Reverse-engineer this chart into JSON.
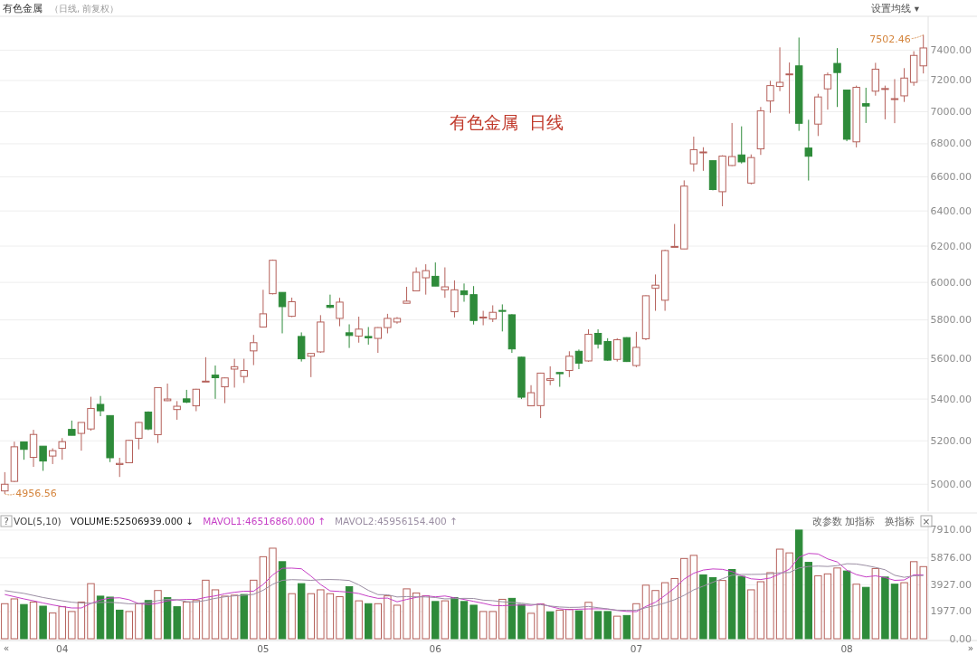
{
  "chart_data": [
    {
      "type": "candlestick",
      "title": "有色金属",
      "subtitle": "（日线, 前复权）",
      "log": true,
      "grid": "y",
      "tick_labels": "y",
      "ylim": [
        4880,
        7630
      ],
      "yticks": [
        {
          "value": 5000,
          "label": "5000.00"
        },
        {
          "value": 5200,
          "label": "5200.00"
        },
        {
          "value": 5400,
          "label": "5400.00"
        },
        {
          "value": 5600,
          "label": "5600.00"
        },
        {
          "value": 5800,
          "label": "5800.00"
        },
        {
          "value": 6000,
          "label": "6000.00"
        },
        {
          "value": 6200,
          "label": "6200.00"
        },
        {
          "value": 6400,
          "label": "6400.00"
        },
        {
          "value": 6600,
          "label": "6600.00"
        },
        {
          "value": 6800,
          "label": "6800.00"
        },
        {
          "value": 7000,
          "label": "7000.00"
        },
        {
          "value": 7200,
          "label": "7200.00"
        },
        {
          "value": 7400,
          "label": "7400.00"
        }
      ],
      "categories": [
        null,
        null,
        null,
        null,
        null,
        null,
        "04",
        null,
        null,
        null,
        null,
        null,
        null,
        null,
        null,
        null,
        null,
        null,
        null,
        null,
        null,
        null,
        null,
        null,
        null,
        null,
        null,
        "05",
        null,
        null,
        null,
        null,
        null,
        null,
        null,
        null,
        null,
        null,
        null,
        null,
        null,
        null,
        null,
        null,
        null,
        "06",
        null,
        null,
        null,
        null,
        null,
        null,
        null,
        null,
        null,
        null,
        null,
        null,
        null,
        null,
        null,
        null,
        null,
        null,
        null,
        null,
        "07",
        null,
        null,
        null,
        null,
        null,
        null,
        null,
        null,
        null,
        null,
        null,
        null,
        null,
        null,
        null,
        null,
        null,
        null,
        null,
        null,
        null,
        "08",
        null,
        null,
        null,
        null,
        null,
        null,
        null,
        null
      ],
      "ohlc": [
        [
          4970,
          5055,
          4956.56,
          5000
        ],
        [
          5013,
          5196,
          5010,
          5172
        ],
        [
          5195,
          5195,
          5112,
          5160
        ],
        [
          5123,
          5252,
          5079,
          5230
        ],
        [
          5175,
          5175,
          5061,
          5106
        ],
        [
          5129,
          5165,
          5092,
          5154
        ],
        [
          5165,
          5213,
          5112,
          5196
        ],
        [
          5254,
          5296,
          5226,
          5226
        ],
        [
          5235,
          5287,
          5154,
          5287
        ],
        [
          5256,
          5411,
          5248,
          5354
        ],
        [
          5374,
          5415,
          5317,
          5343
        ],
        [
          5320,
          5320,
          5101,
          5121
        ],
        [
          5090,
          5121,
          5033,
          5095
        ],
        [
          5098,
          5205,
          5096,
          5202
        ],
        [
          5212,
          5290,
          5160,
          5287
        ],
        [
          5337,
          5340,
          5250,
          5256
        ],
        [
          5229,
          5458,
          5190,
          5456
        ],
        [
          5392,
          5476,
          5390,
          5400
        ],
        [
          5349,
          5390,
          5300,
          5365
        ],
        [
          5401,
          5445,
          5380,
          5385
        ],
        [
          5367,
          5450,
          5341,
          5448
        ],
        [
          5485,
          5608,
          5485,
          5488
        ],
        [
          5518,
          5566,
          5401,
          5505
        ],
        [
          5460,
          5506,
          5380,
          5504
        ],
        [
          5548,
          5600,
          5456,
          5560
        ],
        [
          5511,
          5600,
          5479,
          5541
        ],
        [
          5640,
          5722,
          5568,
          5682
        ],
        [
          5763,
          5960,
          5760,
          5832
        ],
        [
          5939,
          6125,
          5935,
          6121
        ],
        [
          5946,
          5946,
          5730,
          5870
        ],
        [
          5819,
          5918,
          5815,
          5896
        ],
        [
          5714,
          5735,
          5586,
          5600
        ],
        [
          5613,
          5630,
          5508,
          5627
        ],
        [
          5635,
          5825,
          5630,
          5789
        ],
        [
          5877,
          5934,
          5862,
          5866
        ],
        [
          5808,
          5917,
          5767,
          5894
        ],
        [
          5733,
          5777,
          5655,
          5719
        ],
        [
          5716,
          5817,
          5682,
          5752
        ],
        [
          5714,
          5763,
          5672,
          5707
        ],
        [
          5704,
          5762,
          5630,
          5760
        ],
        [
          5760,
          5832,
          5730,
          5808
        ],
        [
          5789,
          5815,
          5780,
          5808
        ],
        [
          5888,
          5976,
          5888,
          5899
        ],
        [
          5954,
          6082,
          5954,
          6055
        ],
        [
          6025,
          6099,
          5934,
          6064
        ],
        [
          6033,
          6109,
          5980,
          5980
        ],
        [
          5960,
          6082,
          5917,
          5976
        ],
        [
          5843,
          6011,
          5813,
          5960
        ],
        [
          5954,
          5994,
          5896,
          5934
        ],
        [
          5934,
          5980,
          5776,
          5797
        ],
        [
          5810,
          5848,
          5772,
          5815
        ],
        [
          5805,
          5877,
          5789,
          5840
        ],
        [
          5850,
          5882,
          5740,
          5845
        ],
        [
          5827,
          5830,
          5630,
          5650
        ],
        [
          5608,
          5610,
          5400,
          5409
        ],
        [
          5367,
          5468,
          5365,
          5431
        ],
        [
          5368,
          5530,
          5308,
          5528
        ],
        [
          5492,
          5562,
          5468,
          5500
        ],
        [
          5531,
          5531,
          5460,
          5525
        ],
        [
          5541,
          5638,
          5508,
          5613
        ],
        [
          5638,
          5647,
          5548,
          5578
        ],
        [
          5589,
          5751,
          5585,
          5725
        ],
        [
          5730,
          5751,
          5652,
          5675
        ],
        [
          5688,
          5705,
          5590,
          5593
        ],
        [
          5597,
          5705,
          5586,
          5697
        ],
        [
          5708,
          5710,
          5584,
          5586
        ],
        [
          5566,
          5738,
          5558,
          5658
        ],
        [
          5702,
          5930,
          5695,
          5928
        ],
        [
          5968,
          6043,
          5848,
          5985
        ],
        [
          5904,
          6180,
          5848,
          6175
        ],
        [
          6195,
          6325,
          6195,
          6198
        ],
        [
          6184,
          6579,
          6184,
          6545
        ],
        [
          6678,
          6844,
          6632,
          6764
        ],
        [
          6745,
          6779,
          6636,
          6750
        ],
        [
          6697,
          6697,
          6520,
          6525
        ],
        [
          6512,
          6730,
          6427,
          6725
        ],
        [
          6668,
          6929,
          6665,
          6722
        ],
        [
          6732,
          6908,
          6680,
          6690
        ],
        [
          6563,
          6735,
          6555,
          6716
        ],
        [
          6769,
          7030,
          6732,
          7005
        ],
        [
          7068,
          7198,
          6993,
          7167
        ],
        [
          7162,
          7419,
          7131,
          7188
        ],
        [
          7240,
          7318,
          6988,
          7243
        ],
        [
          7296,
          7485,
          6880,
          6927
        ],
        [
          6774,
          6949,
          6578,
          6724
        ],
        [
          6922,
          7114,
          6848,
          7094
        ],
        [
          7146,
          7252,
          7013,
          7237
        ],
        [
          7312,
          7414,
          7030,
          7252
        ],
        [
          7138,
          7140,
          6816,
          6828
        ],
        [
          6812,
          7167,
          6778,
          7156
        ],
        [
          7051,
          7153,
          6929,
          7036
        ],
        [
          7131,
          7316,
          7102,
          7274
        ],
        [
          7146,
          7167,
          6952,
          7148
        ],
        [
          7080,
          7209,
          6928,
          7083
        ],
        [
          7101,
          7281,
          7062,
          7216
        ],
        [
          7188,
          7393,
          7166,
          7365
        ],
        [
          7296,
          7502.46,
          7246,
          7415
        ]
      ],
      "colors": [
        "#b5605a",
        "#b5605a",
        "#2e8b3a",
        "#b5605a",
        "#2e8b3a",
        "#b5605a",
        "#b5605a",
        "#2e8b3a",
        "#b5605a",
        "#b5605a",
        "#2e8b3a",
        "#2e8b3a",
        "#b5605a",
        "#b5605a",
        "#b5605a",
        "#2e8b3a",
        "#b5605a",
        "#b5605a",
        "#b5605a",
        "#2e8b3a",
        "#b5605a",
        "#b5605a",
        "#2e8b3a",
        "#b5605a",
        "#b5605a",
        "#b5605a",
        "#b5605a",
        "#b5605a",
        "#b5605a",
        "#2e8b3a",
        "#b5605a",
        "#2e8b3a",
        "#b5605a",
        "#b5605a",
        "#2e8b3a",
        "#b5605a",
        "#2e8b3a",
        "#b5605a",
        "#2e8b3a",
        "#b5605a",
        "#b5605a",
        "#b5605a",
        "#b5605a",
        "#b5605a",
        "#b5605a",
        "#2e8b3a",
        "#b5605a",
        "#b5605a",
        "#2e8b3a",
        "#2e8b3a",
        "#b5605a",
        "#b5605a",
        "#2e8b3a",
        "#2e8b3a",
        "#2e8b3a",
        "#b5605a",
        "#b5605a",
        "#b5605a",
        "#2e8b3a",
        "#b5605a",
        "#2e8b3a",
        "#b5605a",
        "#2e8b3a",
        "#2e8b3a",
        "#b5605a",
        "#2e8b3a",
        "#b5605a",
        "#b5605a",
        "#b5605a",
        "#b5605a",
        "#b5605a",
        "#b5605a",
        "#b5605a",
        "#b5605a",
        "#2e8b3a",
        "#b5605a",
        "#b5605a",
        "#2e8b3a",
        "#b5605a",
        "#b5605a",
        "#b5605a",
        "#b5605a",
        "#b5605a",
        "#2e8b3a",
        "#2e8b3a",
        "#b5605a",
        "#b5605a",
        "#2e8b3a",
        "#2e8b3a",
        "#b5605a",
        "#2e8b3a",
        "#b5605a",
        "#b5605a",
        "#b5605a",
        "#b5605a",
        "#b5605a",
        "#b5605a"
      ],
      "annotations": [
        "7502.46",
        "4956.56",
        "有色金属  日线",
        "设置均线 ▾"
      ]
    },
    {
      "type": "bar",
      "title": "VOL(5,10)",
      "grid": "y",
      "ylim": [
        0,
        8300
      ],
      "yticks": [
        {
          "value": 0,
          "label": "0.00"
        },
        {
          "value": 1977,
          "label": "1977.00"
        },
        {
          "value": 3927,
          "label": "3927.00"
        },
        {
          "value": 5876,
          "label": "5876.00"
        },
        {
          "value": 7910,
          "label": "7910.00"
        }
      ],
      "categories": [
        null,
        null,
        null,
        null,
        null,
        null,
        "04",
        null,
        null,
        null,
        null,
        null,
        null,
        null,
        null,
        null,
        null,
        null,
        null,
        null,
        null,
        null,
        null,
        null,
        null,
        null,
        null,
        "05",
        null,
        null,
        null,
        null,
        null,
        null,
        null,
        null,
        null,
        null,
        null,
        null,
        null,
        null,
        null,
        null,
        null,
        "06",
        null,
        null,
        null,
        null,
        null,
        null,
        null,
        null,
        null,
        null,
        null,
        null,
        null,
        null,
        null,
        null,
        null,
        null,
        null,
        null,
        "07",
        null,
        null,
        null,
        null,
        null,
        null,
        null,
        null,
        null,
        null,
        null,
        null,
        null,
        null,
        null,
        null,
        null,
        null,
        null,
        null,
        null,
        "08",
        null,
        null,
        null,
        null,
        null,
        null,
        null,
        null
      ],
      "series": [
        {
          "type": "bar",
          "values": [
            2550,
            2900,
            2490,
            2670,
            2370,
            1870,
            2330,
            1980,
            2670,
            4010,
            3100,
            3030,
            2080,
            1980,
            2550,
            2780,
            3510,
            2990,
            2330,
            2670,
            2780,
            4260,
            3560,
            3100,
            3170,
            3220,
            4260,
            5970,
            6590,
            5610,
            3280,
            4010,
            3280,
            3560,
            3280,
            3060,
            3790,
            2760,
            2550,
            2550,
            3120,
            2440,
            3630,
            3330,
            3120,
            2710,
            2760,
            2990,
            2710,
            2440,
            1980,
            1980,
            2870,
            2940,
            2490,
            1850,
            2530,
            1960,
            2080,
            2140,
            2030,
            2650,
            1980,
            1980,
            1640,
            1690,
            2550,
            3900,
            3510,
            4080,
            4380,
            5840,
            6070,
            4650,
            4450,
            4240,
            5040,
            4540,
            3560,
            4150,
            4810,
            6520,
            6250,
            7910,
            5560,
            4580,
            4720,
            5150,
            4930,
            3970,
            3740,
            5110,
            4490,
            3970,
            4080,
            5610,
            5250
          ],
          "colors": [
            "#b5605a",
            "#b5605a",
            "#2e8b3a",
            "#b5605a",
            "#2e8b3a",
            "#b5605a",
            "#b5605a",
            "#b5605a",
            "#b5605a",
            "#b5605a",
            "#2e8b3a",
            "#2e8b3a",
            "#2e8b3a",
            "#b5605a",
            "#b5605a",
            "#2e8b3a",
            "#b5605a",
            "#2e8b3a",
            "#2e8b3a",
            "#b5605a",
            "#b5605a",
            "#b5605a",
            "#b5605a",
            "#b5605a",
            "#b5605a",
            "#2e8b3a",
            "#b5605a",
            "#b5605a",
            "#b5605a",
            "#2e8b3a",
            "#b5605a",
            "#2e8b3a",
            "#b5605a",
            "#b5605a",
            "#b5605a",
            "#b5605a",
            "#2e8b3a",
            "#b5605a",
            "#2e8b3a",
            "#b5605a",
            "#b5605a",
            "#b5605a",
            "#b5605a",
            "#b5605a",
            "#b5605a",
            "#2e8b3a",
            "#b5605a",
            "#2e8b3a",
            "#2e8b3a",
            "#2e8b3a",
            "#b5605a",
            "#b5605a",
            "#b5605a",
            "#2e8b3a",
            "#2e8b3a",
            "#b5605a",
            "#b5605a",
            "#2e8b3a",
            "#b5605a",
            "#b5605a",
            "#2e8b3a",
            "#b5605a",
            "#2e8b3a",
            "#2e8b3a",
            "#b5605a",
            "#2e8b3a",
            "#b5605a",
            "#b5605a",
            "#b5605a",
            "#b5605a",
            "#b5605a",
            "#b5605a",
            "#b5605a",
            "#2e8b3a",
            "#2e8b3a",
            "#b5605a",
            "#2e8b3a",
            "#2e8b3a",
            "#b5605a",
            "#b5605a",
            "#b5605a",
            "#b5605a",
            "#b5605a",
            "#2e8b3a",
            "#2e8b3a",
            "#b5605a",
            "#b5605a",
            "#b5605a",
            "#2e8b3a",
            "#b5605a",
            "#2e8b3a",
            "#b5605a",
            "#2e8b3a",
            "#2e8b3a",
            "#b5605a",
            "#b5605a",
            "#b5605a"
          ]
        },
        {
          "type": "line",
          "name": "MAVOL1:46516860.000 ↑",
          "color": "#c63fc6",
          "values": [
            3220,
            3060,
            2900,
            2760,
            2600,
            2460,
            2340,
            2240,
            2240,
            2570,
            2820,
            2960,
            2980,
            2840,
            2550,
            2490,
            2580,
            2760,
            2830,
            2860,
            2860,
            3010,
            3120,
            3270,
            3380,
            3460,
            3460,
            3950,
            4640,
            5130,
            5140,
            5090,
            4560,
            3950,
            3480,
            3440,
            3390,
            3290,
            3090,
            2940,
            2960,
            2690,
            2860,
            3010,
            3130,
            3050,
            3110,
            2980,
            2860,
            2720,
            2580,
            2420,
            2400,
            2440,
            2450,
            2430,
            2540,
            2350,
            2180,
            2110,
            2150,
            2170,
            2180,
            2160,
            2060,
            1990,
            1970,
            2350,
            2660,
            3150,
            3690,
            4340,
            4770,
            5000,
            5080,
            5050,
            4890,
            4580,
            4360,
            4310,
            4420,
            4720,
            5060,
            5930,
            6210,
            6170,
            5810,
            5590,
            4990,
            4670,
            4500,
            4580,
            4450,
            4250,
            4280,
            4650,
            4650
          ]
        },
        {
          "type": "line",
          "name": "MAVOL2:45956154.400 ↑",
          "color": "#9b8ea3",
          "values": [
            3500,
            3400,
            3300,
            3150,
            3000,
            2880,
            2760,
            2660,
            2600,
            2580,
            2640,
            2650,
            2610,
            2540,
            2560,
            2650,
            2770,
            2870,
            2840,
            2700,
            2670,
            2790,
            2940,
            3050,
            3120,
            3160,
            3230,
            3530,
            3960,
            4250,
            4300,
            4280,
            4250,
            4300,
            4310,
            4290,
            4240,
            3920,
            3520,
            3210,
            3200,
            3040,
            3070,
            3050,
            3040,
            3000,
            2900,
            2920,
            2940,
            2930,
            2810,
            2770,
            2690,
            2650,
            2590,
            2500,
            2480,
            2380,
            2310,
            2280,
            2290,
            2350,
            2260,
            2170,
            2080,
            2070,
            2070,
            2260,
            2410,
            2600,
            2840,
            3160,
            3560,
            3830,
            4110,
            4370,
            4620,
            4680,
            4680,
            4690,
            4730,
            4800,
            4820,
            5150,
            5260,
            5290,
            5260,
            5320,
            5460,
            5440,
            5330,
            5190,
            5020,
            4620,
            4470,
            4580,
            4600
          ]
        }
      ],
      "annotations": [
        "?",
        "VOLUME:52506939.000 ↓",
        "改参数",
        "加指标",
        "换指标",
        "×",
        "«",
        "»"
      ]
    }
  ]
}
